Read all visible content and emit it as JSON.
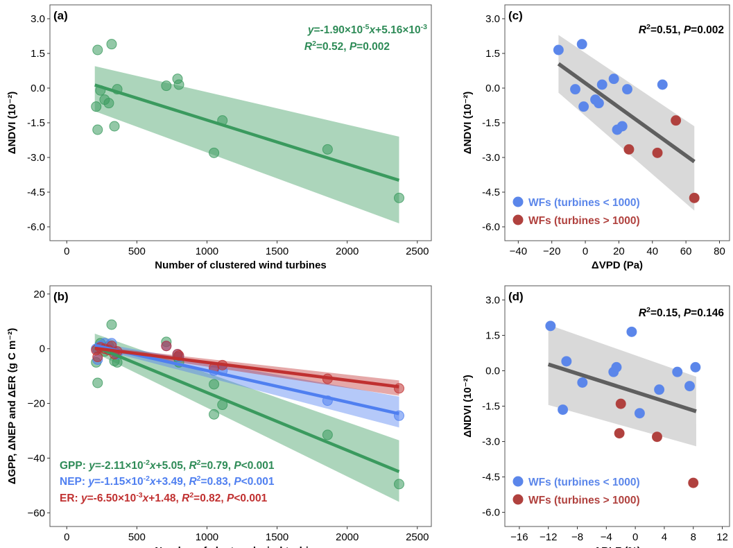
{
  "chart_data": [
    {
      "panel": "(a)",
      "type": "scatter",
      "xlabel": "Number of clustered wind turbines",
      "ylabel": "ΔNDVI (10⁻²)",
      "xlim": [
        -120,
        2600
      ],
      "ylim": [
        -6.6,
        3.6
      ],
      "xticks": [
        0,
        500,
        1000,
        1500,
        2000,
        2500
      ],
      "yticks": [
        3.0,
        1.5,
        0.0,
        -1.5,
        -3.0,
        -4.5,
        -6.0
      ],
      "ytick_labels": [
        "3.0",
        "1.5",
        "0.0",
        "-1.5",
        "-3.0",
        "-4.5",
        "-6.0"
      ],
      "grid": false,
      "annotations": [
        {
          "color": "#2e8b57",
          "align": "end",
          "parts": [
            {
              "t": "y",
              "i": true
            },
            {
              "t": "=-1.90×10"
            },
            {
              "t": "-5",
              "s": true
            },
            {
              "t": "x",
              "i": true
            },
            {
              "t": "+5.16×10"
            },
            {
              "t": "-3",
              "s": true
            }
          ]
        },
        {
          "color": "#2e8b57",
          "align": "end",
          "parts": [
            {
              "t": "R",
              "i": true
            },
            {
              "t": "2",
              "s": true
            },
            {
              "t": "=0.52, "
            },
            {
              "t": "P",
              "i": true
            },
            {
              "t": "=0.002"
            }
          ]
        }
      ],
      "series": [
        {
          "color": "#3a9a5e",
          "points": [
            [
              210,
              -0.8
            ],
            [
              220,
              1.65
            ],
            [
              220,
              -1.8
            ],
            [
              240,
              -0.1
            ],
            [
              270,
              -0.5
            ],
            [
              300,
              -0.65
            ],
            [
              320,
              1.9
            ],
            [
              340,
              -1.65
            ],
            [
              360,
              -0.05
            ],
            [
              710,
              0.1
            ],
            [
              790,
              0.4
            ],
            [
              800,
              0.15
            ],
            [
              1050,
              -2.8
            ],
            [
              1110,
              -1.4
            ],
            [
              1860,
              -2.65
            ],
            [
              2370,
              -4.75
            ]
          ],
          "fit": {
            "slope": -0.0019,
            "intercept": 0.516,
            "x": [
              200,
              2370
            ]
          },
          "band": {
            "x": [
              200,
              2370
            ],
            "lower": [
              -1.0,
              -5.85
            ],
            "upper": [
              0.95,
              -2.1
            ]
          }
        }
      ]
    },
    {
      "panel": "(b)",
      "type": "scatter",
      "xlabel": "Number of clustered wind turbines",
      "ylabel": "ΔGPP, ΔNEP and ΔER (g C m⁻²)",
      "xlim": [
        -120,
        2600
      ],
      "ylim": [
        -65,
        23
      ],
      "xticks": [
        0,
        500,
        1000,
        1500,
        2000,
        2500
      ],
      "yticks": [
        20,
        0,
        -20,
        -40,
        -60
      ],
      "ytick_labels": [
        "20",
        "0",
        "−20",
        "−40",
        "−60"
      ],
      "grid": false,
      "annotations": [
        {
          "color": "#2e8b57",
          "align": "start",
          "parts": [
            {
              "t": "GPP: "
            },
            {
              "t": "y",
              "i": true
            },
            {
              "t": "=-2.11×10"
            },
            {
              "t": "-2",
              "s": true
            },
            {
              "t": "x",
              "i": true
            },
            {
              "t": "+5.05, "
            },
            {
              "t": "R",
              "i": true
            },
            {
              "t": "2",
              "s": true
            },
            {
              "t": "=0.79, "
            },
            {
              "t": "P",
              "i": true
            },
            {
              "t": "<0.001"
            }
          ]
        },
        {
          "color": "#4f7ff0",
          "align": "start",
          "parts": [
            {
              "t": "NEP: "
            },
            {
              "t": "y",
              "i": true
            },
            {
              "t": "=-1.15×10"
            },
            {
              "t": "-2",
              "s": true
            },
            {
              "t": "x",
              "i": true
            },
            {
              "t": "+3.49, "
            },
            {
              "t": "R",
              "i": true
            },
            {
              "t": "2",
              "s": true
            },
            {
              "t": "=0.83, "
            },
            {
              "t": "P",
              "i": true
            },
            {
              "t": "<0.001"
            }
          ]
        },
        {
          "color": "#c03030",
          "align": "start",
          "parts": [
            {
              "t": "ER:   "
            },
            {
              "t": "y",
              "i": true
            },
            {
              "t": "=-6.50×10"
            },
            {
              "t": "-3",
              "s": true
            },
            {
              "t": "x",
              "i": true
            },
            {
              "t": "+1.48, "
            },
            {
              "t": "R",
              "i": true
            },
            {
              "t": "2",
              "s": true
            },
            {
              "t": "=0.82, "
            },
            {
              "t": "P",
              "i": true
            },
            {
              "t": "<0.001"
            }
          ]
        }
      ],
      "series": [
        {
          "name": "GPP",
          "color": "#3a9a5e",
          "points": [
            [
              210,
              -5
            ],
            [
              220,
              -12.5
            ],
            [
              220,
              0
            ],
            [
              240,
              2
            ],
            [
              270,
              -1
            ],
            [
              300,
              1
            ],
            [
              320,
              8.8
            ],
            [
              340,
              -4.5
            ],
            [
              360,
              -5
            ],
            [
              710,
              2.5
            ],
            [
              790,
              -3
            ],
            [
              800,
              -5
            ],
            [
              1050,
              -24
            ],
            [
              1050,
              -13
            ],
            [
              1110,
              -20.5
            ],
            [
              1860,
              -31.5
            ],
            [
              2370,
              -49.5
            ]
          ],
          "fit": {
            "slope": -0.0211,
            "intercept": 5.05,
            "x": [
              200,
              2370
            ]
          },
          "band": {
            "x": [
              200,
              2370
            ],
            "lower": [
              -1.5,
              -56
            ],
            "upper": [
              5.5,
              -33.5
            ]
          }
        },
        {
          "name": "NEP",
          "color": "#4f7ff0",
          "points": [
            [
              210,
              0
            ],
            [
              220,
              -4
            ],
            [
              240,
              1
            ],
            [
              270,
              2
            ],
            [
              300,
              0
            ],
            [
              320,
              2
            ],
            [
              340,
              -1
            ],
            [
              360,
              -2
            ],
            [
              710,
              1
            ],
            [
              790,
              -2
            ],
            [
              800,
              -3
            ],
            [
              1050,
              -8
            ],
            [
              1110,
              -8
            ],
            [
              1860,
              -19
            ],
            [
              2370,
              -24.5
            ]
          ],
          "fit": {
            "slope": -0.0115,
            "intercept": 3.49,
            "x": [
              200,
              2370
            ]
          },
          "band": {
            "x": [
              200,
              2370
            ],
            "lower": [
              0.3,
              -28.8
            ],
            "upper": [
              2.4,
              -17.5
            ]
          }
        },
        {
          "name": "ER",
          "color": "#c03030",
          "points": [
            [
              210,
              -0.5
            ],
            [
              220,
              -3
            ],
            [
              240,
              0.5
            ],
            [
              270,
              0
            ],
            [
              300,
              -0.5
            ],
            [
              320,
              1
            ],
            [
              340,
              -2
            ],
            [
              360,
              -1
            ],
            [
              710,
              1
            ],
            [
              790,
              -2
            ],
            [
              800,
              -2.5
            ],
            [
              1050,
              -7
            ],
            [
              1110,
              -6
            ],
            [
              1860,
              -11
            ],
            [
              2370,
              -14.5
            ]
          ],
          "fit": {
            "slope": -0.0065,
            "intercept": 1.48,
            "x": [
              200,
              2370
            ]
          },
          "band": {
            "x": [
              200,
              2370
            ],
            "lower": [
              -0.3,
              -17.2
            ],
            "upper": [
              0.9,
              -11.6
            ]
          }
        }
      ]
    },
    {
      "panel": "(c)",
      "type": "scatter",
      "xlabel": "ΔVPD (Pa)",
      "ylabel": "ΔNDVI (10⁻²)",
      "xlim": [
        -48,
        86
      ],
      "ylim": [
        -6.6,
        3.6
      ],
      "xticks": [
        -40,
        -20,
        0,
        20,
        40,
        60,
        80
      ],
      "xtick_labels": [
        "−40",
        "−20",
        "0",
        "20",
        "40",
        "60",
        "80"
      ],
      "yticks": [
        3.0,
        1.5,
        0.0,
        -1.5,
        -3.0,
        -4.5,
        -6.0
      ],
      "ytick_labels": [
        "3.0",
        "1.5",
        "0.0",
        "-1.5",
        "-3.0",
        "-4.5",
        "-6.0"
      ],
      "grid": false,
      "annotations": [
        {
          "color": "#000000",
          "align": "end",
          "parts": [
            {
              "t": "R",
              "i": true
            },
            {
              "t": "2",
              "s": true
            },
            {
              "t": "=0.51, "
            },
            {
              "t": "P",
              "i": true
            },
            {
              "t": "=0.002"
            }
          ]
        }
      ],
      "legend": {
        "position": "bottom-left",
        "entries": [
          {
            "label": "WFs (turbines < 1000)",
            "color": "#5b86ea"
          },
          {
            "label": "WFs (turbines > 1000)",
            "color": "#b0413e"
          }
        ]
      },
      "series": [
        {
          "label": "WFs (turbines < 1000)",
          "color": "#5b86ea",
          "points": [
            [
              -16,
              1.65
            ],
            [
              -2,
              1.9
            ],
            [
              -6,
              -0.05
            ],
            [
              -1,
              -0.8
            ],
            [
              6,
              -0.5
            ],
            [
              8,
              -0.65
            ],
            [
              10,
              0.15
            ],
            [
              17,
              0.4
            ],
            [
              19,
              -1.8
            ],
            [
              22,
              -1.65
            ],
            [
              25,
              -0.05
            ],
            [
              46,
              0.15
            ]
          ]
        },
        {
          "label": "WFs (turbines > 1000)",
          "color": "#b0413e",
          "points": [
            [
              26,
              -2.65
            ],
            [
              43,
              -2.8
            ],
            [
              54,
              -1.4
            ],
            [
              65,
              -4.75
            ]
          ]
        }
      ],
      "fit": {
        "color": "#5f5f5f",
        "x": [
          -16,
          65
        ],
        "y": [
          1.05,
          -3.18
        ]
      },
      "band": {
        "color": "#d9d9d9",
        "x": [
          -16,
          65
        ],
        "lower": [
          -0.2,
          -5.3
        ],
        "upper": [
          2.3,
          -1.65
        ]
      }
    },
    {
      "panel": "(d)",
      "type": "scatter",
      "xlabel": "ΔBLF (%)",
      "ylabel": "ΔNDVI (10⁻²)",
      "xlim": [
        -18,
        13
      ],
      "ylim": [
        -6.6,
        3.6
      ],
      "xticks": [
        -16,
        -12,
        -8,
        -4,
        0,
        4,
        8,
        12
      ],
      "xtick_labels": [
        "−16",
        "−12",
        "−8",
        "−4",
        "0",
        "4",
        "8",
        "12"
      ],
      "yticks": [
        3.0,
        1.5,
        0.0,
        -1.5,
        -3.0,
        -4.5,
        -6.0
      ],
      "ytick_labels": [
        "3.0",
        "1.5",
        "0.0",
        "-1.5",
        "-3.0",
        "-4.5",
        "-6.0"
      ],
      "grid": false,
      "annotations": [
        {
          "color": "#000000",
          "align": "end",
          "parts": [
            {
              "t": "R",
              "i": true
            },
            {
              "t": "2",
              "s": true
            },
            {
              "t": "=0.15, "
            },
            {
              "t": "P",
              "i": true
            },
            {
              "t": "=0.146"
            }
          ]
        }
      ],
      "legend": {
        "position": "bottom-left",
        "entries": [
          {
            "label": "WFs (turbines < 1000)",
            "color": "#5b86ea"
          },
          {
            "label": "WFs (turbines > 1000)",
            "color": "#b0413e"
          }
        ]
      },
      "series": [
        {
          "label": "WFs (turbines < 1000)",
          "color": "#5b86ea",
          "points": [
            [
              -11.7,
              1.9
            ],
            [
              -10,
              -1.65
            ],
            [
              -9.5,
              0.4
            ],
            [
              -7.3,
              -0.5
            ],
            [
              -3,
              -0.05
            ],
            [
              -2.6,
              0.15
            ],
            [
              -0.5,
              1.65
            ],
            [
              0.6,
              -1.8
            ],
            [
              3.3,
              -0.8
            ],
            [
              5.8,
              -0.05
            ],
            [
              7.5,
              -0.65
            ],
            [
              8.3,
              0.15
            ]
          ]
        },
        {
          "label": "WFs (turbines > 1000)",
          "color": "#b0413e",
          "points": [
            [
              -2,
              -1.4
            ],
            [
              -2.2,
              -2.65
            ],
            [
              3,
              -2.8
            ],
            [
              8,
              -4.75
            ]
          ]
        }
      ],
      "fit": {
        "color": "#5f5f5f",
        "x": [
          -12,
          8.4
        ],
        "y": [
          0.27,
          -1.72
        ]
      },
      "band": {
        "color": "#d9d9d9",
        "x": [
          -12,
          8.4
        ],
        "lower": [
          -1.45,
          -3.2
        ],
        "upper": [
          1.95,
          -0.25
        ]
      }
    }
  ]
}
